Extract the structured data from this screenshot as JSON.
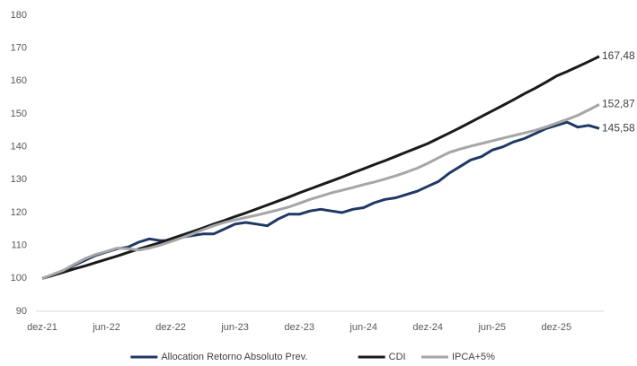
{
  "chart_data": {
    "type": "line",
    "categories": [
      "dez-21",
      null,
      null,
      null,
      null,
      null,
      "jun-22",
      null,
      null,
      null,
      null,
      null,
      "dez-22",
      null,
      null,
      null,
      null,
      null,
      "jun-23",
      null,
      null,
      null,
      null,
      null,
      "dez-23",
      null,
      null,
      null,
      null,
      null,
      "jun-24",
      null,
      null,
      null,
      null,
      null,
      "dez-24",
      null,
      null,
      null,
      null,
      null,
      "jun-25",
      null,
      null,
      null,
      null,
      null,
      "dez-25",
      null,
      null,
      null,
      null
    ],
    "ylim": [
      90,
      180
    ],
    "yticks": [
      90,
      100,
      110,
      120,
      130,
      140,
      150,
      160,
      170,
      180
    ],
    "grid": false,
    "legend": "bottom",
    "series": [
      {
        "name": "Allocation Retorno Absoluto Prev.",
        "color": "#1f3864",
        "values": [
          100,
          101,
          102.3,
          104,
          105.5,
          107,
          108,
          109,
          109.5,
          111,
          112,
          111.5,
          111.5,
          112.5,
          113,
          113.5,
          113.5,
          115,
          116.5,
          117,
          116.5,
          116,
          118,
          119.5,
          119.5,
          120.5,
          121,
          120.5,
          120,
          121,
          121.5,
          123,
          124,
          124.5,
          125.5,
          126.5,
          128,
          129.5,
          132,
          134,
          136,
          137,
          139,
          140,
          141.5,
          142.5,
          144,
          145.5,
          146.5,
          147.5,
          146,
          146.5,
          145.58
        ],
        "value_labels": [
          null,
          null,
          null,
          null,
          null,
          null,
          null,
          null,
          null,
          null,
          null,
          null,
          null,
          null,
          null,
          null,
          null,
          null,
          null,
          null,
          null,
          null,
          null,
          null,
          null,
          null,
          null,
          null,
          null,
          null,
          null,
          null,
          null,
          null,
          null,
          null,
          null,
          null,
          null,
          null,
          null,
          null,
          null,
          null,
          null,
          null,
          null,
          null,
          null,
          null,
          null,
          null,
          "145,58"
        ]
      },
      {
        "name": "CDI",
        "color": "#1a1a1a",
        "values": [
          100,
          100.9,
          101.9,
          102.9,
          103.8,
          104.8,
          105.8,
          106.8,
          107.9,
          108.9,
          109.9,
          110.9,
          112,
          113.1,
          114.2,
          115.3,
          116.5,
          117.6,
          118.8,
          119.9,
          121.1,
          122.3,
          123.5,
          124.7,
          126,
          127.2,
          128.4,
          129.6,
          130.8,
          132.1,
          133.3,
          134.6,
          135.8,
          137.1,
          138.4,
          139.7,
          141,
          142.6,
          144.2,
          145.8,
          147.5,
          149.2,
          150.9,
          152.6,
          154.3,
          156.1,
          157.8,
          159.6,
          161.5,
          162.9,
          164.4,
          165.9,
          167.48
        ],
        "value_labels": [
          null,
          null,
          null,
          null,
          null,
          null,
          null,
          null,
          null,
          null,
          null,
          null,
          null,
          null,
          null,
          null,
          null,
          null,
          null,
          null,
          null,
          null,
          null,
          null,
          null,
          null,
          null,
          null,
          null,
          null,
          null,
          null,
          null,
          null,
          null,
          null,
          null,
          null,
          null,
          null,
          null,
          null,
          null,
          null,
          null,
          null,
          null,
          null,
          null,
          null,
          null,
          null,
          "167,48"
        ]
      },
      {
        "name": "IPCA+5%",
        "color": "#a6a6a6",
        "values": [
          100,
          101.2,
          102.5,
          104.3,
          106,
          107.3,
          108.2,
          109.2,
          109,
          108.6,
          109.2,
          110.1,
          111.2,
          112.3,
          113.5,
          114.8,
          116,
          117,
          117.8,
          118.5,
          119.2,
          120,
          120.8,
          121.7,
          122.8,
          124,
          125,
          126,
          126.8,
          127.6,
          128.5,
          129.3,
          130.2,
          131.2,
          132.3,
          133.5,
          135,
          136.7,
          138.3,
          139.3,
          140.2,
          141,
          141.8,
          142.6,
          143.4,
          144.2,
          145,
          146,
          147.2,
          148.3,
          149.6,
          151.2,
          152.87
        ],
        "value_labels": [
          null,
          null,
          null,
          null,
          null,
          null,
          null,
          null,
          null,
          null,
          null,
          null,
          null,
          null,
          null,
          null,
          null,
          null,
          null,
          null,
          null,
          null,
          null,
          null,
          null,
          null,
          null,
          null,
          null,
          null,
          null,
          null,
          null,
          null,
          null,
          null,
          null,
          null,
          null,
          null,
          null,
          null,
          null,
          null,
          null,
          null,
          null,
          null,
          null,
          null,
          null,
          null,
          "152,87"
        ]
      }
    ]
  }
}
